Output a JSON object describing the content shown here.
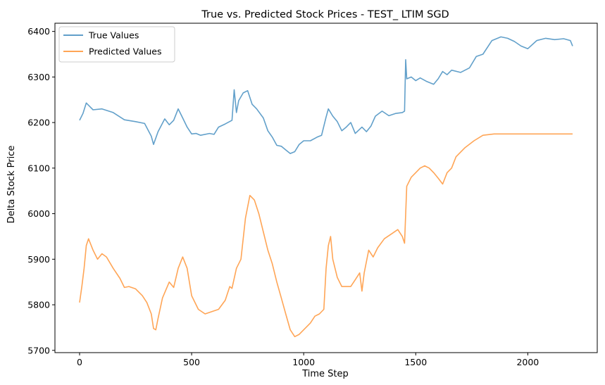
{
  "chart_data": {
    "type": "line",
    "title": "True vs. Predicted Stock Prices - TEST_ LTIM SGD",
    "xlabel": "Time Step",
    "ylabel": "Delta Stock Price",
    "xlim": [
      -110,
      2310
    ],
    "ylim": [
      5695,
      6418
    ],
    "xticks": [
      0,
      500,
      1000,
      1500,
      2000
    ],
    "yticks": [
      5700,
      5800,
      5900,
      6000,
      6100,
      6200,
      6300,
      6400
    ],
    "grid": false,
    "legend_position": "upper left",
    "series": [
      {
        "name": "True Values",
        "color": "#1f77b4",
        "x": [
          0,
          15,
          30,
          60,
          100,
          150,
          200,
          250,
          290,
          320,
          330,
          350,
          380,
          400,
          420,
          440,
          460,
          480,
          500,
          520,
          540,
          580,
          600,
          620,
          650,
          680,
          690,
          700,
          710,
          730,
          750,
          770,
          790,
          820,
          840,
          860,
          880,
          900,
          920,
          940,
          960,
          980,
          1000,
          1030,
          1060,
          1080,
          1100,
          1110,
          1130,
          1150,
          1170,
          1190,
          1210,
          1230,
          1260,
          1280,
          1300,
          1320,
          1350,
          1380,
          1410,
          1440,
          1450,
          1455,
          1460,
          1480,
          1500,
          1520,
          1550,
          1580,
          1600,
          1620,
          1640,
          1660,
          1700,
          1740,
          1770,
          1800,
          1840,
          1880,
          1910,
          1940,
          1970,
          2000,
          2040,
          2080,
          2120,
          2160,
          2190,
          2200
        ],
        "values": [
          6205,
          6220,
          6243,
          6228,
          6230,
          6222,
          6206,
          6202,
          6198,
          6170,
          6152,
          6180,
          6208,
          6195,
          6205,
          6230,
          6210,
          6190,
          6175,
          6176,
          6172,
          6176,
          6174,
          6190,
          6197,
          6205,
          6272,
          6222,
          6248,
          6265,
          6270,
          6240,
          6230,
          6210,
          6182,
          6168,
          6150,
          6148,
          6140,
          6132,
          6136,
          6152,
          6160,
          6160,
          6168,
          6172,
          6212,
          6230,
          6214,
          6202,
          6182,
          6190,
          6200,
          6176,
          6190,
          6180,
          6192,
          6214,
          6225,
          6215,
          6220,
          6222,
          6225,
          6338,
          6296,
          6300,
          6292,
          6298,
          6290,
          6284,
          6296,
          6312,
          6305,
          6315,
          6310,
          6320,
          6345,
          6350,
          6380,
          6388,
          6385,
          6378,
          6368,
          6362,
          6380,
          6385,
          6382,
          6384,
          6380,
          6368
        ]
      },
      {
        "name": "Predicted Values",
        "color": "#ff7f0e",
        "x": [
          0,
          10,
          20,
          30,
          40,
          60,
          80,
          100,
          120,
          150,
          180,
          200,
          220,
          250,
          280,
          300,
          320,
          330,
          340,
          350,
          370,
          400,
          420,
          440,
          460,
          480,
          500,
          530,
          560,
          590,
          620,
          650,
          670,
          680,
          700,
          720,
          740,
          760,
          780,
          800,
          820,
          840,
          860,
          880,
          900,
          920,
          940,
          960,
          980,
          1000,
          1030,
          1050,
          1070,
          1090,
          1100,
          1110,
          1120,
          1130,
          1150,
          1170,
          1190,
          1210,
          1230,
          1250,
          1260,
          1270,
          1290,
          1310,
          1330,
          1360,
          1390,
          1420,
          1440,
          1450,
          1460,
          1480,
          1500,
          1520,
          1540,
          1560,
          1580,
          1600,
          1620,
          1640,
          1660,
          1680,
          1720,
          1760,
          1800,
          1850,
          1900,
          2000,
          2100,
          2200
        ],
        "values": [
          5805,
          5840,
          5880,
          5930,
          5945,
          5920,
          5900,
          5912,
          5905,
          5880,
          5858,
          5838,
          5840,
          5835,
          5820,
          5805,
          5780,
          5748,
          5745,
          5770,
          5815,
          5850,
          5838,
          5880,
          5905,
          5880,
          5820,
          5790,
          5780,
          5785,
          5790,
          5810,
          5840,
          5836,
          5880,
          5900,
          5990,
          6040,
          6030,
          6000,
          5960,
          5920,
          5890,
          5850,
          5815,
          5780,
          5745,
          5730,
          5735,
          5745,
          5760,
          5775,
          5780,
          5790,
          5880,
          5930,
          5950,
          5900,
          5860,
          5840,
          5840,
          5840,
          5855,
          5870,
          5830,
          5870,
          5920,
          5905,
          5925,
          5945,
          5955,
          5965,
          5950,
          5935,
          6060,
          6080,
          6090,
          6100,
          6105,
          6100,
          6090,
          6078,
          6065,
          6090,
          6100,
          6125,
          6145,
          6160,
          6172,
          6175,
          6175,
          6175,
          6175,
          6175
        ]
      }
    ]
  }
}
